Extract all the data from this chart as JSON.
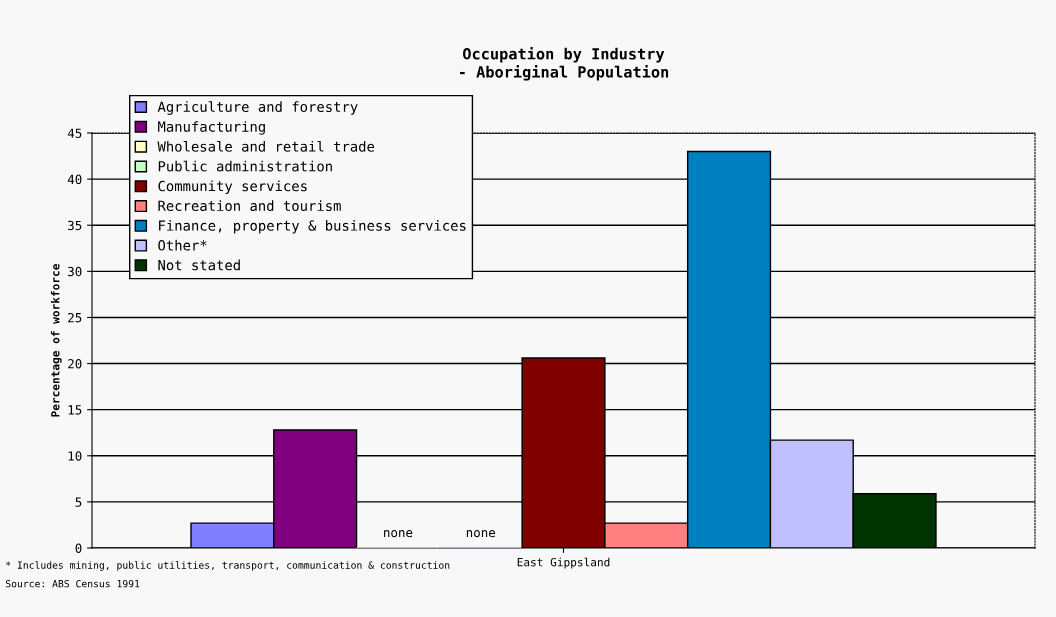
{
  "chart_data": {
    "type": "bar",
    "title": "Occupation by Industry\n- Aboriginal Population",
    "ylabel": "Percentage of workforce",
    "categories": [
      "East Gippsland"
    ],
    "series": [
      {
        "name": "Agriculture and forestry",
        "color": "#8080ff",
        "values": [
          2.7
        ]
      },
      {
        "name": "Manufacturing",
        "color": "#800080",
        "values": [
          12.8
        ]
      },
      {
        "name": "Wholesale and retail trade",
        "color": "#ffffc0",
        "values": [
          0
        ],
        "value_labels": [
          "none"
        ]
      },
      {
        "name": "Public administration",
        "color": "#c0ffc0",
        "values": [
          0
        ],
        "value_labels": [
          "none"
        ]
      },
      {
        "name": "Community services",
        "color": "#800000",
        "values": [
          20.6
        ]
      },
      {
        "name": "Recreation and tourism",
        "color": "#ff8080",
        "values": [
          2.7
        ]
      },
      {
        "name": "Finance, property & business services",
        "color": "#0080c0",
        "values": [
          43
        ]
      },
      {
        "name": "Other*",
        "color": "#c0c0ff",
        "values": [
          11.7
        ]
      },
      {
        "name": "Not stated",
        "color": "#003300",
        "values": [
          5.9
        ]
      }
    ],
    "ylim": [
      0,
      45
    ],
    "yticks": [
      0,
      5,
      10,
      15,
      20,
      25,
      30,
      35,
      40,
      45
    ],
    "grid": "y",
    "legend": "top left",
    "annotations": [
      "* Includes mining, public utilities, transport, communication & construction",
      "Source: ABS Census 1991"
    ]
  }
}
